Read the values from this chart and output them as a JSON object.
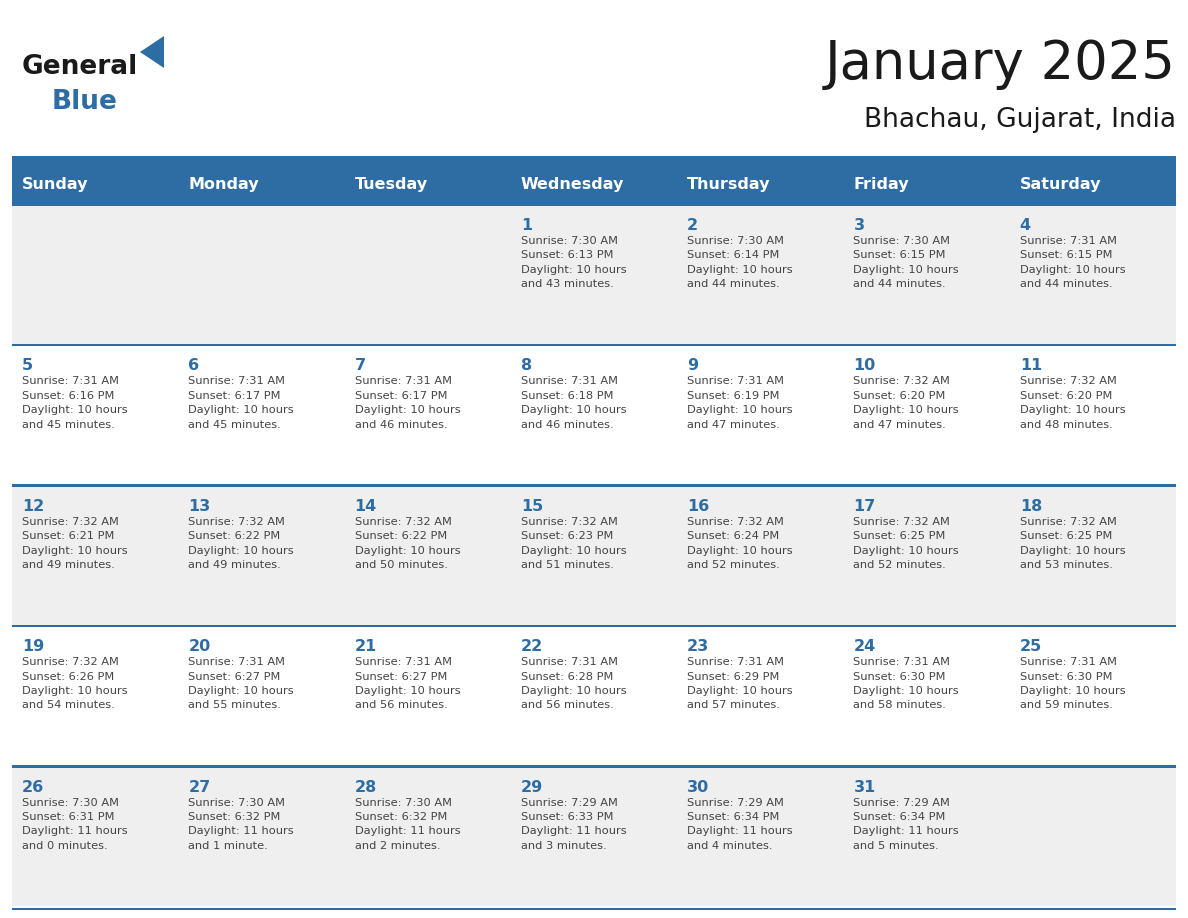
{
  "title": "January 2025",
  "subtitle": "Bhachau, Gujarat, India",
  "header_bg_color": "#2E6DA4",
  "header_text_color": "#FFFFFF",
  "cell_bg_even": "#EFEFEF",
  "cell_bg_odd": "#FFFFFF",
  "day_number_color": "#2E6DA4",
  "text_color": "#444444",
  "line_color": "#2E6DA4",
  "days_of_week": [
    "Sunday",
    "Monday",
    "Tuesday",
    "Wednesday",
    "Thursday",
    "Friday",
    "Saturday"
  ],
  "weeks": [
    [
      {
        "day": "",
        "info": ""
      },
      {
        "day": "",
        "info": ""
      },
      {
        "day": "",
        "info": ""
      },
      {
        "day": "1",
        "info": "Sunrise: 7:30 AM\nSunset: 6:13 PM\nDaylight: 10 hours\nand 43 minutes."
      },
      {
        "day": "2",
        "info": "Sunrise: 7:30 AM\nSunset: 6:14 PM\nDaylight: 10 hours\nand 44 minutes."
      },
      {
        "day": "3",
        "info": "Sunrise: 7:30 AM\nSunset: 6:15 PM\nDaylight: 10 hours\nand 44 minutes."
      },
      {
        "day": "4",
        "info": "Sunrise: 7:31 AM\nSunset: 6:15 PM\nDaylight: 10 hours\nand 44 minutes."
      }
    ],
    [
      {
        "day": "5",
        "info": "Sunrise: 7:31 AM\nSunset: 6:16 PM\nDaylight: 10 hours\nand 45 minutes."
      },
      {
        "day": "6",
        "info": "Sunrise: 7:31 AM\nSunset: 6:17 PM\nDaylight: 10 hours\nand 45 minutes."
      },
      {
        "day": "7",
        "info": "Sunrise: 7:31 AM\nSunset: 6:17 PM\nDaylight: 10 hours\nand 46 minutes."
      },
      {
        "day": "8",
        "info": "Sunrise: 7:31 AM\nSunset: 6:18 PM\nDaylight: 10 hours\nand 46 minutes."
      },
      {
        "day": "9",
        "info": "Sunrise: 7:31 AM\nSunset: 6:19 PM\nDaylight: 10 hours\nand 47 minutes."
      },
      {
        "day": "10",
        "info": "Sunrise: 7:32 AM\nSunset: 6:20 PM\nDaylight: 10 hours\nand 47 minutes."
      },
      {
        "day": "11",
        "info": "Sunrise: 7:32 AM\nSunset: 6:20 PM\nDaylight: 10 hours\nand 48 minutes."
      }
    ],
    [
      {
        "day": "12",
        "info": "Sunrise: 7:32 AM\nSunset: 6:21 PM\nDaylight: 10 hours\nand 49 minutes."
      },
      {
        "day": "13",
        "info": "Sunrise: 7:32 AM\nSunset: 6:22 PM\nDaylight: 10 hours\nand 49 minutes."
      },
      {
        "day": "14",
        "info": "Sunrise: 7:32 AM\nSunset: 6:22 PM\nDaylight: 10 hours\nand 50 minutes."
      },
      {
        "day": "15",
        "info": "Sunrise: 7:32 AM\nSunset: 6:23 PM\nDaylight: 10 hours\nand 51 minutes."
      },
      {
        "day": "16",
        "info": "Sunrise: 7:32 AM\nSunset: 6:24 PM\nDaylight: 10 hours\nand 52 minutes."
      },
      {
        "day": "17",
        "info": "Sunrise: 7:32 AM\nSunset: 6:25 PM\nDaylight: 10 hours\nand 52 minutes."
      },
      {
        "day": "18",
        "info": "Sunrise: 7:32 AM\nSunset: 6:25 PM\nDaylight: 10 hours\nand 53 minutes."
      }
    ],
    [
      {
        "day": "19",
        "info": "Sunrise: 7:32 AM\nSunset: 6:26 PM\nDaylight: 10 hours\nand 54 minutes."
      },
      {
        "day": "20",
        "info": "Sunrise: 7:31 AM\nSunset: 6:27 PM\nDaylight: 10 hours\nand 55 minutes."
      },
      {
        "day": "21",
        "info": "Sunrise: 7:31 AM\nSunset: 6:27 PM\nDaylight: 10 hours\nand 56 minutes."
      },
      {
        "day": "22",
        "info": "Sunrise: 7:31 AM\nSunset: 6:28 PM\nDaylight: 10 hours\nand 56 minutes."
      },
      {
        "day": "23",
        "info": "Sunrise: 7:31 AM\nSunset: 6:29 PM\nDaylight: 10 hours\nand 57 minutes."
      },
      {
        "day": "24",
        "info": "Sunrise: 7:31 AM\nSunset: 6:30 PM\nDaylight: 10 hours\nand 58 minutes."
      },
      {
        "day": "25",
        "info": "Sunrise: 7:31 AM\nSunset: 6:30 PM\nDaylight: 10 hours\nand 59 minutes."
      }
    ],
    [
      {
        "day": "26",
        "info": "Sunrise: 7:30 AM\nSunset: 6:31 PM\nDaylight: 11 hours\nand 0 minutes."
      },
      {
        "day": "27",
        "info": "Sunrise: 7:30 AM\nSunset: 6:32 PM\nDaylight: 11 hours\nand 1 minute."
      },
      {
        "day": "28",
        "info": "Sunrise: 7:30 AM\nSunset: 6:32 PM\nDaylight: 11 hours\nand 2 minutes."
      },
      {
        "day": "29",
        "info": "Sunrise: 7:29 AM\nSunset: 6:33 PM\nDaylight: 11 hours\nand 3 minutes."
      },
      {
        "day": "30",
        "info": "Sunrise: 7:29 AM\nSunset: 6:34 PM\nDaylight: 11 hours\nand 4 minutes."
      },
      {
        "day": "31",
        "info": "Sunrise: 7:29 AM\nSunset: 6:34 PM\nDaylight: 11 hours\nand 5 minutes."
      },
      {
        "day": "",
        "info": ""
      }
    ]
  ],
  "logo_text_general": "General",
  "logo_text_blue": "Blue",
  "logo_color_general": "#1a1a1a",
  "logo_color_blue": "#2E6DA4",
  "logo_triangle_color": "#2E6DA4",
  "fig_width": 11.88,
  "fig_height": 9.18,
  "dpi": 100
}
